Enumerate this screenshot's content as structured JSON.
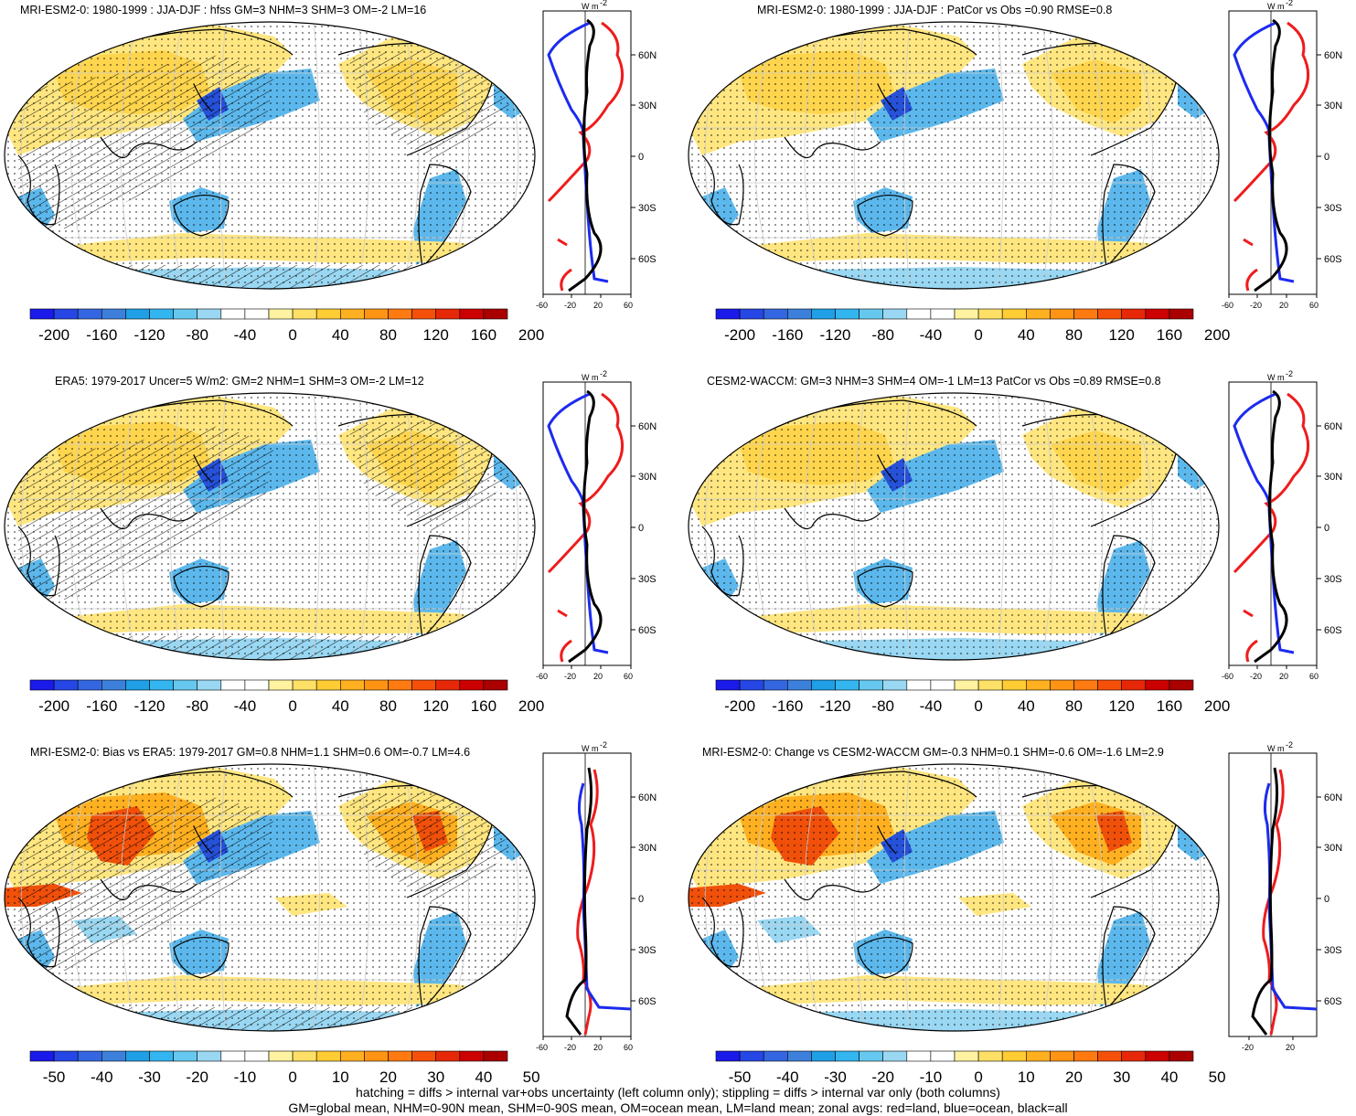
{
  "panels": [
    {
      "title": "MRI-ESM2-0: 1980-1999 : JJA-DJF : hfss GM=3 NHM=3 SHM=3 OM=-2 LM=16",
      "hatch": true,
      "scale": "a",
      "zonal_x_ticks": [
        "-60",
        "-20",
        "20",
        "60"
      ]
    },
    {
      "title": "MRI-ESM2-0: 1980-1999 : JJA-DJF : PatCor vs Obs =0.90 RMSE=0.8",
      "hatch": false,
      "scale": "a",
      "zonal_x_ticks": [
        "-60",
        "-20",
        "20",
        "60"
      ]
    },
    {
      "title": "ERA5: 1979-2017 Uncer=5 W/m2: GM=2 NHM=1 SHM=3 OM=-2 LM=12",
      "hatch": true,
      "scale": "a",
      "zonal_x_ticks": [
        "-60",
        "-20",
        "20",
        "60"
      ]
    },
    {
      "title": "CESM2-WACCM: GM=3 NHM=3 SHM=4 OM=-1 LM=13 PatCor vs Obs =0.89 RMSE=0.8",
      "hatch": false,
      "scale": "a",
      "zonal_x_ticks": [
        "-60",
        "-20",
        "20",
        "60"
      ]
    },
    {
      "title": "MRI-ESM2-0: Bias vs ERA5: 1979-2017 GM=0.8 NHM=1.1 SHM=0.6 OM=-0.7 LM=4.6",
      "hatch": true,
      "scale": "b",
      "zonal_x_ticks": [
        "-60",
        "-20",
        "20",
        "60"
      ]
    },
    {
      "title": "MRI-ESM2-0: Change vs CESM2-WACCM GM=-0.3 NHM=0.1 SHM=-0.6 OM=-1.6 LM=2.9",
      "hatch": false,
      "scale": "b",
      "zonal_x_ticks": [
        "-20",
        "20"
      ]
    }
  ],
  "colorbar_a": {
    "labels": [
      "-200",
      "-160",
      "-120",
      "-80",
      "-40",
      "0",
      "40",
      "80",
      "120",
      "160",
      "200"
    ]
  },
  "colorbar_b": {
    "labels": [
      "-50",
      "-40",
      "-30",
      "-20",
      "-10",
      "0",
      "10",
      "20",
      "30",
      "40",
      "50"
    ]
  },
  "colorbar_colors": [
    "#1a1aeb",
    "#2647e6",
    "#3366e0",
    "#3d80dc",
    "#1f9fe6",
    "#33b5f0",
    "#66c8ee",
    "#99d7f2",
    "#ffffff",
    "#ffffff",
    "#fff2a0",
    "#ffe066",
    "#ffcc33",
    "#ffb020",
    "#ff9414",
    "#ff7a10",
    "#f5500a",
    "#e62808",
    "#cc0000",
    "#aa0000"
  ],
  "zonal_lat_labels": [
    "60N",
    "30N",
    "0",
    "30S",
    "60S"
  ],
  "zonal_unit": "W m",
  "zonal_unit_sup": "-2",
  "zonal_series": {
    "land": "red",
    "ocean": "blue",
    "all": "black"
  },
  "footer": {
    "line1": "hatching = diffs > internal var+obs uncertainty (left column only); stippling = diffs > internal var only (both columns)",
    "line2": "GM=global mean, NHM=0-90N mean, SHM=0-90S mean, OM=ocean mean, LM=land mean; zonal avgs: red=land, blue=ocean, black=all"
  }
}
